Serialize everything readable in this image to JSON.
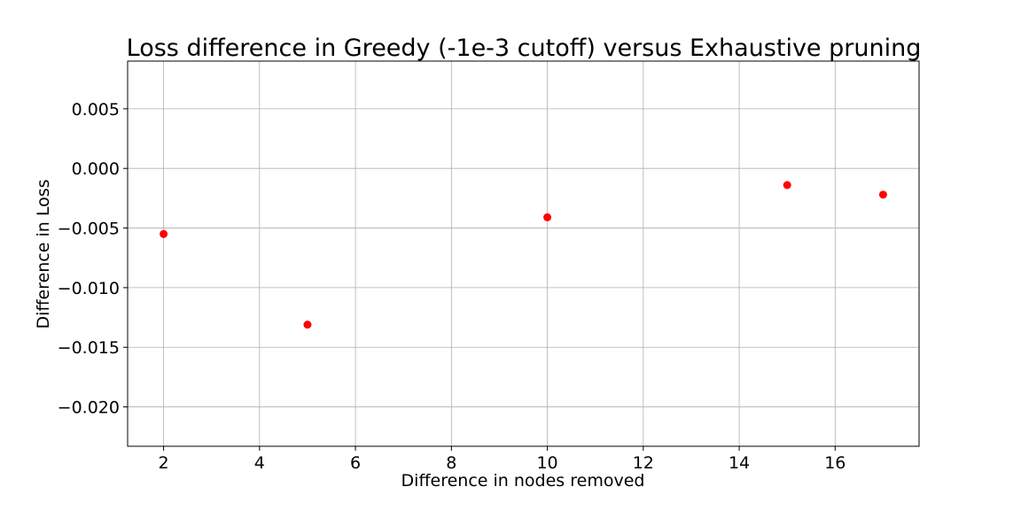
{
  "chart_data": {
    "type": "scatter",
    "title": "Loss difference in Greedy (-1e-3 cutoff) versus Exhaustive pruning",
    "xlabel": "Difference in nodes removed",
    "ylabel": "Difference in Loss",
    "xlim": [
      1.25,
      17.75
    ],
    "ylim": [
      -0.0233,
      0.009
    ],
    "x_ticks": [
      2,
      4,
      6,
      8,
      10,
      12,
      14,
      16
    ],
    "x_tick_labels": [
      "2",
      "4",
      "6",
      "8",
      "10",
      "12",
      "14",
      "16"
    ],
    "y_ticks": [
      0.005,
      0.0,
      -0.005,
      -0.01,
      -0.015,
      -0.02
    ],
    "y_tick_labels": [
      "0.005",
      "0.000",
      "−0.005",
      "−0.010",
      "−0.015",
      "−0.020"
    ],
    "grid": true,
    "marker_color": "#ff0000",
    "series": [
      {
        "points": [
          {
            "x": 2,
            "y": -0.0055
          },
          {
            "x": 5,
            "y": -0.0131
          },
          {
            "x": 10,
            "y": -0.0041
          },
          {
            "x": 15,
            "y": -0.0014
          },
          {
            "x": 17,
            "y": -0.0022
          }
        ]
      }
    ]
  }
}
